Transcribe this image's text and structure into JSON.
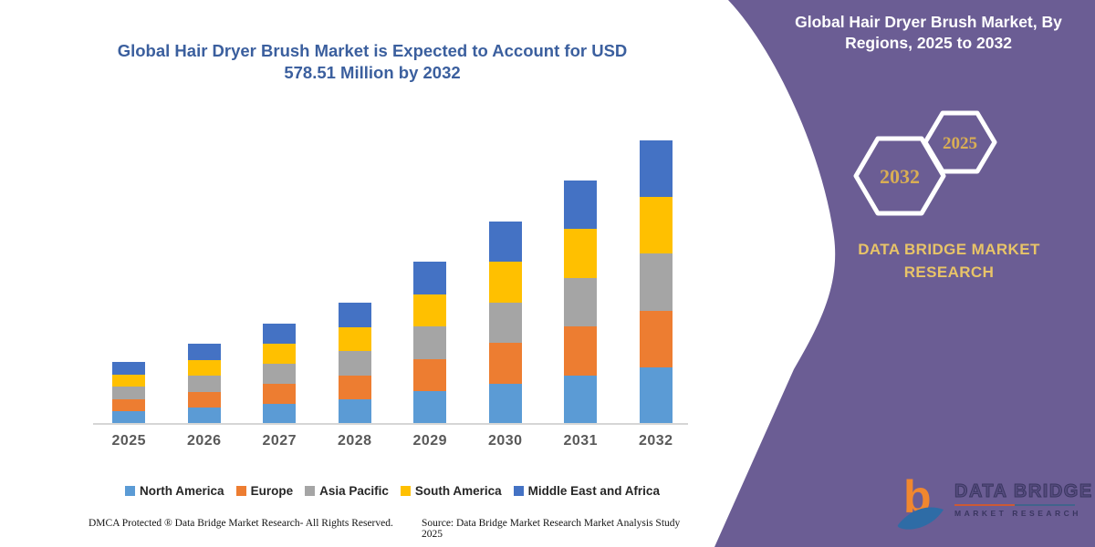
{
  "page": {
    "background": "#FFFFFF",
    "purple": "#6B5D94",
    "axis_line_color": "#D6D6D6",
    "xlabel_color": "#595959",
    "title_color": "#3B5F9E"
  },
  "chart_section": {
    "title_lines": [
      "Global Hair Dryer Brush Market is Expected to Account for USD",
      "578.51 Million by 2032"
    ],
    "footer_left": "DMCA Protected ® Data Bridge Market Research-  All Rights Reserved.",
    "footer_source": "Source: Data Bridge Market Research  Market Analysis Study 2025"
  },
  "chart_data": {
    "type": "bar",
    "stacked": true,
    "title": "Global Hair Dryer Brush Market is Expected to Account for USD 578.51 Million by 2032",
    "units": "USD Million (values estimated from bar heights; 2032 total labeled 578.51)",
    "categories": [
      "2025",
      "2026",
      "2027",
      "2028",
      "2029",
      "2030",
      "2031",
      "2032"
    ],
    "series": [
      {
        "name": "North America",
        "color": "#5B9BD5",
        "values": [
          25.3,
          32.7,
          40.9,
          49.5,
          66.2,
          82.6,
          99.3,
          115.7
        ]
      },
      {
        "name": "Europe",
        "color": "#ED7D31",
        "values": [
          25.3,
          32.7,
          40.9,
          49.5,
          66.2,
          82.6,
          99.3,
          115.7
        ]
      },
      {
        "name": "Asia Pacific",
        "color": "#A5A5A5",
        "values": [
          25.3,
          32.7,
          40.9,
          49.5,
          66.2,
          82.6,
          99.3,
          115.7
        ]
      },
      {
        "name": "South America",
        "color": "#FFC000",
        "values": [
          25.3,
          32.7,
          40.9,
          49.5,
          66.2,
          82.6,
          99.3,
          115.7
        ]
      },
      {
        "name": "Middle East and Africa",
        "color": "#4472C4",
        "values": [
          25.3,
          32.7,
          40.9,
          49.5,
          66.2,
          82.6,
          99.3,
          115.7
        ]
      }
    ],
    "totals_estimated": [
      126.5,
      163.5,
      204.5,
      247.5,
      331.0,
      413.0,
      496.5,
      578.51
    ],
    "xlabel": "",
    "ylabel": "",
    "value_axis_visible": false,
    "gridlines": false,
    "legend_position": "bottom"
  },
  "right_panel": {
    "title_lines": [
      "Global Hair Dryer Brush Market, By",
      "Regions, 2025 to 2032"
    ],
    "hexagon_large_year": "2032",
    "hexagon_small_year": "2025",
    "year_color": "#D9AE54",
    "brand_lines": [
      "DATA BRIDGE MARKET",
      "RESEARCH"
    ],
    "brand_color": "#E8C468",
    "logo": {
      "monogram": "b",
      "name": "DATA BRIDGE",
      "tagline": "MARKET RESEARCH",
      "orange": "#F0872F",
      "blue": "#2E6CA6"
    }
  }
}
